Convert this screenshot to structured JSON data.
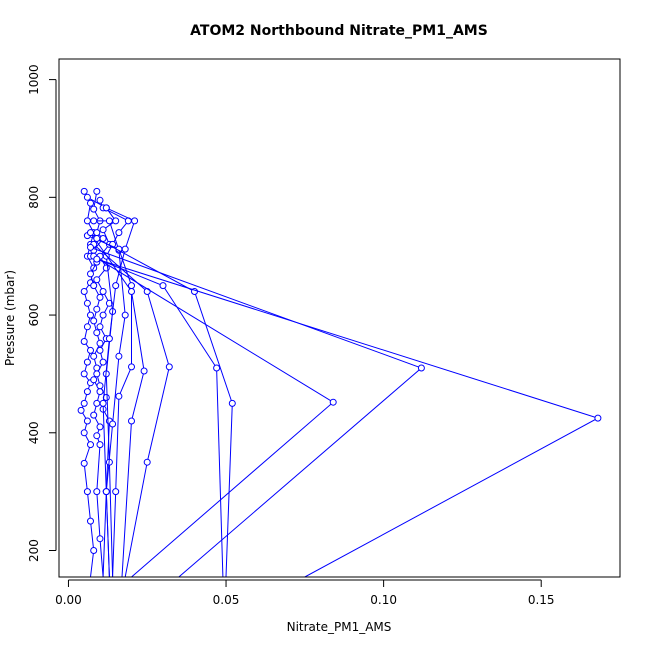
{
  "chart_data": {
    "type": "line",
    "title": "ATOM2 Northbound Nitrate_PM1_AMS",
    "xlabel": "Nitrate_PM1_AMS",
    "ylabel": "Pressure (mbar)",
    "xlim": [
      -0.003,
      0.175
    ],
    "ylim": [
      1035,
      155
    ],
    "y_reversed": true,
    "x_ticks": [
      0.0,
      0.05,
      0.1,
      0.15
    ],
    "x_tick_labels": [
      "0.00",
      "0.05",
      "0.10",
      "0.15"
    ],
    "y_ticks": [
      200,
      400,
      600,
      800,
      1000
    ],
    "y_tick_labels": [
      "200",
      "400",
      "600",
      "800",
      "1000"
    ],
    "grid": false,
    "marker": "open-circle",
    "series_color": "#0000ff",
    "series": [
      {
        "points": [
          [
            0.005,
            810
          ],
          [
            0.007,
            790
          ],
          [
            0.006,
            760
          ],
          [
            0.008,
            740
          ],
          [
            0.007,
            720
          ],
          [
            0.006,
            700
          ],
          [
            0.008,
            680
          ],
          [
            0.007,
            655
          ],
          [
            0.005,
            640
          ],
          [
            0.006,
            620
          ],
          [
            0.007,
            600
          ],
          [
            0.006,
            580
          ],
          [
            0.005,
            555
          ],
          [
            0.007,
            540
          ],
          [
            0.006,
            520
          ],
          [
            0.005,
            500
          ],
          [
            0.007,
            485
          ],
          [
            0.006,
            470
          ],
          [
            0.005,
            450
          ],
          [
            0.004,
            438
          ],
          [
            0.006,
            420
          ],
          [
            0.005,
            400
          ],
          [
            0.007,
            380
          ],
          [
            0.005,
            348
          ],
          [
            0.006,
            300
          ],
          [
            0.007,
            250
          ],
          [
            0.008,
            200
          ],
          [
            0.007,
            155
          ]
        ]
      },
      {
        "points": [
          [
            0.009,
            810
          ],
          [
            0.008,
            780
          ],
          [
            0.01,
            760
          ],
          [
            0.009,
            740
          ],
          [
            0.011,
            730
          ],
          [
            0.008,
            710
          ],
          [
            0.009,
            690
          ],
          [
            0.007,
            670
          ],
          [
            0.008,
            650
          ],
          [
            0.01,
            630
          ],
          [
            0.009,
            610
          ],
          [
            0.008,
            590
          ],
          [
            0.009,
            570
          ],
          [
            0.01,
            552
          ],
          [
            0.008,
            530
          ],
          [
            0.009,
            510
          ],
          [
            0.008,
            490
          ],
          [
            0.01,
            470
          ],
          [
            0.009,
            450
          ],
          [
            0.008,
            430
          ],
          [
            0.01,
            410
          ],
          [
            0.009,
            395
          ],
          [
            0.01,
            380
          ],
          [
            0.009,
            300
          ],
          [
            0.01,
            220
          ],
          [
            0.011,
            155
          ]
        ]
      },
      {
        "points": [
          [
            0.006,
            800
          ],
          [
            0.012,
            782
          ],
          [
            0.015,
            760
          ],
          [
            0.011,
            745
          ],
          [
            0.013,
            720
          ],
          [
            0.01,
            700
          ],
          [
            0.012,
            680
          ],
          [
            0.009,
            660
          ],
          [
            0.011,
            640
          ],
          [
            0.013,
            620
          ],
          [
            0.011,
            600
          ],
          [
            0.01,
            580
          ],
          [
            0.012,
            560
          ],
          [
            0.01,
            540
          ],
          [
            0.011,
            520
          ],
          [
            0.009,
            500
          ],
          [
            0.01,
            480
          ],
          [
            0.012,
            460
          ],
          [
            0.011,
            440
          ],
          [
            0.013,
            420
          ],
          [
            0.012,
            300
          ],
          [
            0.013,
            155
          ]
        ]
      },
      {
        "points": [
          [
            0.01,
            795
          ],
          [
            0.011,
            782
          ],
          [
            0.019,
            760
          ],
          [
            0.016,
            740
          ],
          [
            0.014,
            720
          ],
          [
            0.012,
            700
          ],
          [
            0.014,
            606
          ],
          [
            0.012,
            500
          ],
          [
            0.013,
            350
          ],
          [
            0.014,
            155
          ]
        ]
      },
      {
        "points": [
          [
            0.012,
            782
          ],
          [
            0.021,
            760
          ],
          [
            0.018,
            712
          ],
          [
            0.015,
            650
          ],
          [
            0.013,
            560
          ],
          [
            0.011,
            450
          ],
          [
            0.012,
            300
          ],
          [
            0.013,
            155
          ]
        ]
      },
      {
        "points": [
          [
            0.008,
            760
          ],
          [
            0.013,
            760
          ],
          [
            0.016,
            710
          ],
          [
            0.018,
            600
          ],
          [
            0.016,
            530
          ],
          [
            0.014,
            415
          ],
          [
            0.012,
            300
          ],
          [
            0.011,
            155
          ]
        ]
      },
      {
        "points": [
          [
            0.006,
            735
          ],
          [
            0.016,
            712
          ],
          [
            0.02,
            650
          ],
          [
            0.02,
            512
          ],
          [
            0.016,
            462
          ],
          [
            0.015,
            300
          ],
          [
            0.014,
            155
          ]
        ]
      },
      {
        "points": [
          [
            0.007,
            740
          ],
          [
            0.02,
            640
          ],
          [
            0.024,
            505
          ],
          [
            0.02,
            420
          ],
          [
            0.017,
            155
          ]
        ]
      },
      {
        "points": [
          [
            0.008,
            720
          ],
          [
            0.025,
            640
          ],
          [
            0.032,
            512
          ],
          [
            0.025,
            350
          ],
          [
            0.018,
            155
          ]
        ]
      },
      {
        "points": [
          [
            0.007,
            700
          ],
          [
            0.03,
            650
          ],
          [
            0.047,
            510
          ],
          [
            0.049,
            155
          ]
        ]
      },
      {
        "points": [
          [
            0.009,
            730
          ],
          [
            0.04,
            640
          ],
          [
            0.052,
            450
          ],
          [
            0.05,
            155
          ]
        ]
      },
      {
        "points": [
          [
            0.008,
            700
          ],
          [
            0.084,
            452
          ],
          [
            0.02,
            155
          ]
        ]
      },
      {
        "points": [
          [
            0.007,
            715
          ],
          [
            0.112,
            510
          ],
          [
            0.035,
            155
          ]
        ]
      },
      {
        "points": [
          [
            0.009,
            695
          ],
          [
            0.168,
            425
          ],
          [
            0.075,
            155
          ]
        ]
      }
    ]
  }
}
